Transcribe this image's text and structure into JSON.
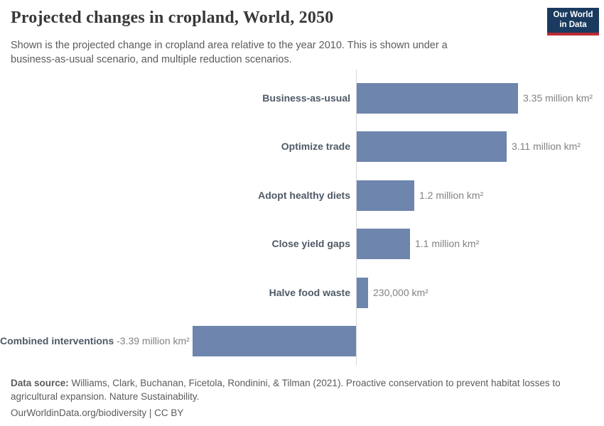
{
  "header": {
    "title": "Projected changes in cropland, World, 2050",
    "subtitle": "Shown is the projected change in cropland area relative to the year 2010. This is shown under a business-as-usual scenario, and multiple reduction scenarios.",
    "logo": {
      "line1": "Our World",
      "line2": "in Data",
      "bg_color": "#1a3a5f",
      "stripe_color": "#bc2b36",
      "text_color": "#ffffff"
    }
  },
  "chart_data": {
    "type": "bar",
    "orientation": "horizontal",
    "title": "Projected changes in cropland, World, 2050",
    "unit": "million km²",
    "categories": [
      "Business-as-usual",
      "Optimize trade",
      "Adopt healthy diets",
      "Close yield gaps",
      "Halve food waste",
      "Combined interventions"
    ],
    "values": [
      3.35,
      3.11,
      1.2,
      1.1,
      0.23,
      -3.39
    ],
    "value_labels": [
      "3.35 million km²",
      "3.11 million km²",
      "1.2 million km²",
      "1.1 million km²",
      "230,000 km²",
      "-3.39 million km²"
    ],
    "baseline": 0,
    "xlim": [
      -3.39,
      3.35
    ],
    "grid": false,
    "legend": false,
    "bar_color": "#6e85ad",
    "axis_color": "#d8d8d8",
    "category_label_color": "#4f5a66",
    "value_label_color": "#828282"
  },
  "footer": {
    "source_label": "Data source:",
    "source_text": " Williams, Clark, Buchanan, Ficetola, Rondinini, & Tilman (2021). Proactive conservation to prevent habitat losses to agricultural expansion. Nature Sustainability.",
    "link_text": "OurWorldinData.org/biodiversity",
    "separator": " | ",
    "license_text": "CC BY"
  }
}
